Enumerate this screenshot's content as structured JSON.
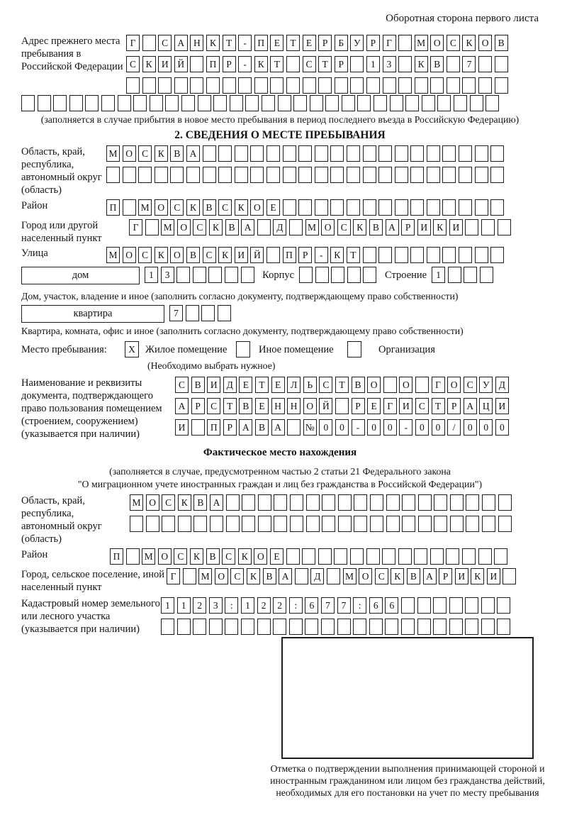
{
  "corner_note": "Оборотная сторона первого листа",
  "prev_address": {
    "label": "Адрес прежнего места пребывания в Российской Федерации",
    "row1": "Г САНКТ-ПЕТЕРБУРГ МОСКОВ",
    "row2": "СКИЙ ПР-КТ СТР 13 КВ 7  ",
    "row3": "                        ",
    "row4": "                              ",
    "note": "(заполняется в случае прибытия в новое место пребывания в период последнего въезда в Российскую Федерацию)"
  },
  "section2": {
    "heading": "2. СВЕДЕНИЯ О МЕСТЕ ПРЕБЫВАНИЯ",
    "oblast": {
      "label": "Область, край, республика, автономный округ (область)",
      "row1": "МОСКВА                   ",
      "row2": "                         "
    },
    "raion": {
      "label": "Район",
      "row": "П МОСКВСКОЕ              "
    },
    "gorod": {
      "label": "Город или другой населенный пункт",
      "row": "Г МОСКВА Д МОСКВАРИКИ   "
    },
    "ulitsa": {
      "label": "Улица",
      "row": "МОСКОВСКИЙ ПР-КТ         "
    },
    "dom": {
      "box_label": "дом",
      "cells": "13     ",
      "korpus_label": "Корпус",
      "korpus_cells": "     ",
      "stroenie_label": "Строение",
      "stroenie_cells": "1   ",
      "note": "Дом, участок, владение и иное (заполнить согласно документу, подтверждающему право собственности)"
    },
    "kvartira": {
      "box_label": "квартира",
      "cells": "7   ",
      "note": "Квартира, комната, офис и иное (заполнить согласно документу, подтверждающему право собственности)"
    },
    "mesto": {
      "label": "Место пребывания:",
      "opt1_mark": "X",
      "opt1": "Жилое помещение",
      "opt2_mark": "",
      "opt2": "Иное помещение",
      "opt3_mark": "",
      "opt3": "Организация",
      "note": "(Необходимо выбрать нужное)"
    },
    "doc": {
      "label": "Наименование и реквизиты документа, подтверждающего право пользования помещением (строением, сооружением) (указывается при наличии)",
      "row1": "СВИДЕТЕЛЬСТВО О ГОСУД",
      "row2": "АРСТВЕННОЙ РЕГИСТРАЦИ",
      "row3": "И ПРАВА №00-00-00/000"
    }
  },
  "fact": {
    "heading": "Фактическое место нахождения",
    "note1": "(заполняется в случае, предусмотренном частью 2 статьи 21 Федерального закона",
    "note2": "\"О миграционном учете иностранных граждан и лиц без гражданства в Российской Федерации\")",
    "oblast": {
      "label": "Область, край, республика, автономный округ (область)",
      "row1": "МОСКВА                  ",
      "row2": "                        "
    },
    "raion": {
      "label": "Район",
      "row": "П МОСКВСКОЕ              "
    },
    "gorod": {
      "label": "Город, сельское поселение, иной населенный пункт",
      "row": "Г МОСКВА Д МОСКВАРИКИ "
    },
    "kadastr": {
      "label": "Кадастровый номер земельного или лесного участка (указывается при наличии)",
      "row1": "1123:122:677:66       ",
      "row2": "                      "
    },
    "stamp_note": "Отметка о подтверждении выполнения принимающей стороной и иностранным гражданином или лицом без гражданства действий, необходимых для его постановки на учет по месту пребывания"
  }
}
